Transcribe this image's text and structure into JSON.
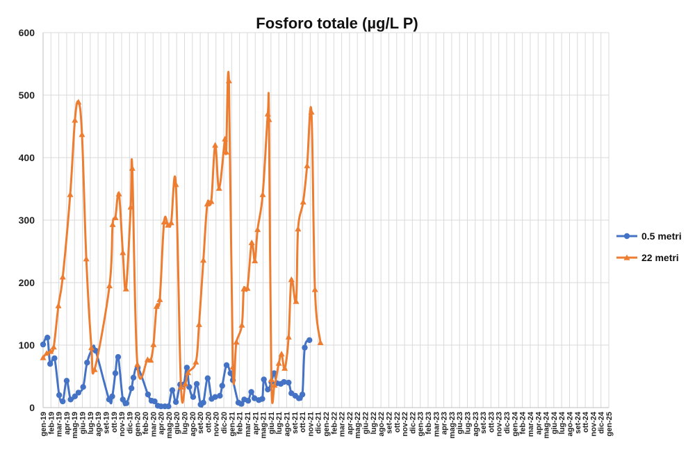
{
  "chart_data": {
    "type": "line",
    "title": "Fosforo totale (µg/L P)",
    "xlabel": "",
    "ylabel": "",
    "ylim": [
      0,
      600
    ],
    "yticks": [
      0,
      100,
      200,
      300,
      400,
      500,
      600
    ],
    "grid": true,
    "legend_position": "right",
    "x_tick_labels": [
      "gen-19",
      "feb-19",
      "mar-19",
      "apr-19",
      "mag-19",
      "giu-19",
      "lug-19",
      "ago-19",
      "set-19",
      "ott-19",
      "nov-19",
      "dic-19",
      "gen-20",
      "feb-20",
      "mar-20",
      "apr-20",
      "mag-20",
      "giu-20",
      "lug-20",
      "ago-20",
      "set-20",
      "ott-20",
      "nov-20",
      "dic-20",
      "gen-21",
      "feb-21",
      "mar-21",
      "apr-21",
      "mag-21",
      "giu-21",
      "lug-21",
      "ago-21",
      "set-21",
      "ott-21",
      "nov-21",
      "dic-21",
      "gen-22",
      "feb-22",
      "mar-22",
      "apr-22",
      "mag-22",
      "giu-22",
      "lug-22",
      "ago-22",
      "set-22",
      "ott-22",
      "nov-22",
      "dic-22",
      "gen-23",
      "feb-23",
      "mar-23",
      "apr-23",
      "mag-23",
      "giu-23",
      "lug-23",
      "ago-23",
      "set-23",
      "ott-23",
      "nov-23",
      "dic-23",
      "gen-24",
      "feb-24",
      "mar-24",
      "apr-24",
      "mag-24",
      "giu-24",
      "lug-24",
      "ago-24",
      "set-24",
      "ott-24",
      "nov-24",
      "dic-24",
      "gen-25"
    ],
    "series": [
      {
        "name": "0.5 metri",
        "color": "#4472C4",
        "marker": "circle",
        "points": [
          [
            0.0,
            101
          ],
          [
            0.55,
            112
          ],
          [
            0.9,
            70
          ],
          [
            1.45,
            79
          ],
          [
            2.05,
            20
          ],
          [
            2.5,
            10
          ],
          [
            3.0,
            43
          ],
          [
            3.5,
            13
          ],
          [
            4.05,
            18
          ],
          [
            4.5,
            24
          ],
          [
            5.1,
            33
          ],
          [
            5.6,
            72
          ],
          [
            6.3,
            94
          ],
          [
            6.7,
            91
          ],
          [
            8.4,
            13
          ],
          [
            8.8,
            18
          ],
          [
            9.2,
            55
          ],
          [
            9.55,
            81
          ],
          [
            10.15,
            13
          ],
          [
            10.6,
            7
          ],
          [
            11.25,
            31
          ],
          [
            11.5,
            48
          ],
          [
            12.05,
            64
          ],
          [
            13.35,
            21
          ],
          [
            13.8,
            11
          ],
          [
            14.2,
            10
          ],
          [
            14.6,
            3
          ],
          [
            15.0,
            2
          ],
          [
            15.5,
            2
          ],
          [
            15.95,
            2
          ],
          [
            16.45,
            28
          ],
          [
            16.9,
            9
          ],
          [
            17.45,
            37
          ],
          [
            17.9,
            37
          ],
          [
            18.3,
            64
          ],
          [
            18.6,
            33
          ],
          [
            19.1,
            17
          ],
          [
            19.55,
            38
          ],
          [
            20.05,
            5
          ],
          [
            20.4,
            8
          ],
          [
            20.95,
            47
          ],
          [
            21.45,
            14
          ],
          [
            21.9,
            17
          ],
          [
            22.5,
            19
          ],
          [
            22.8,
            35
          ],
          [
            23.35,
            68
          ],
          [
            23.85,
            55
          ],
          [
            24.15,
            44
          ],
          [
            24.85,
            8
          ],
          [
            25.25,
            6
          ],
          [
            25.6,
            13
          ],
          [
            26.1,
            11
          ],
          [
            26.5,
            25
          ],
          [
            26.9,
            15
          ],
          [
            27.45,
            12
          ],
          [
            27.9,
            14
          ],
          [
            28.1,
            45
          ],
          [
            28.6,
            29
          ],
          [
            29.05,
            41
          ],
          [
            29.4,
            55
          ],
          [
            29.75,
            39
          ],
          [
            30.25,
            38
          ],
          [
            30.65,
            41
          ],
          [
            31.25,
            40
          ],
          [
            31.6,
            23
          ],
          [
            32.1,
            19
          ],
          [
            32.55,
            15
          ],
          [
            33.0,
            21
          ],
          [
            33.3,
            96
          ],
          [
            33.9,
            108
          ]
        ]
      },
      {
        "name": "22 metri",
        "color": "#ED7D31",
        "marker": "triangle",
        "points": [
          [
            0.0,
            80
          ],
          [
            0.45,
            87
          ],
          [
            0.95,
            90
          ],
          [
            1.35,
            97
          ],
          [
            1.95,
            163
          ],
          [
            2.5,
            209
          ],
          [
            3.45,
            341
          ],
          [
            4.05,
            460
          ],
          [
            4.5,
            489
          ],
          [
            4.95,
            437
          ],
          [
            5.5,
            238
          ],
          [
            6.15,
            96
          ],
          [
            6.55,
            61
          ],
          [
            8.45,
            195
          ],
          [
            8.85,
            293
          ],
          [
            9.2,
            304
          ],
          [
            9.65,
            342
          ],
          [
            10.15,
            248
          ],
          [
            10.55,
            190
          ],
          [
            11.15,
            321
          ],
          [
            11.35,
            383
          ],
          [
            12.0,
            69
          ],
          [
            13.3,
            77
          ],
          [
            13.7,
            76
          ],
          [
            14.05,
            101
          ],
          [
            14.45,
            162
          ],
          [
            14.85,
            173
          ],
          [
            15.4,
            297
          ],
          [
            15.9,
            292
          ],
          [
            16.3,
            296
          ],
          [
            16.9,
            357
          ],
          [
            17.55,
            33
          ],
          [
            18.1,
            38
          ],
          [
            18.45,
            56
          ],
          [
            19.45,
            73
          ],
          [
            19.85,
            133
          ],
          [
            20.4,
            236
          ],
          [
            20.9,
            326
          ],
          [
            21.4,
            330
          ],
          [
            21.9,
            420
          ],
          [
            22.4,
            351
          ],
          [
            23.15,
            430
          ],
          [
            23.3,
            409
          ],
          [
            23.65,
            523
          ],
          [
            24.15,
            65
          ],
          [
            24.6,
            105
          ],
          [
            25.3,
            132
          ],
          [
            25.55,
            190
          ],
          [
            26.0,
            191
          ],
          [
            26.55,
            264
          ],
          [
            26.95,
            235
          ],
          [
            27.3,
            285
          ],
          [
            27.95,
            341
          ],
          [
            28.6,
            470
          ],
          [
            28.75,
            461
          ],
          [
            29.05,
            45
          ],
          [
            29.45,
            36
          ],
          [
            30.0,
            71
          ],
          [
            30.35,
            86
          ],
          [
            30.75,
            63
          ],
          [
            31.25,
            113
          ],
          [
            31.6,
            205
          ],
          [
            32.2,
            170
          ],
          [
            32.45,
            286
          ],
          [
            33.1,
            329
          ],
          [
            33.6,
            387
          ],
          [
            34.15,
            473
          ],
          [
            34.6,
            189
          ],
          [
            35.3,
            104
          ]
        ]
      }
    ]
  }
}
